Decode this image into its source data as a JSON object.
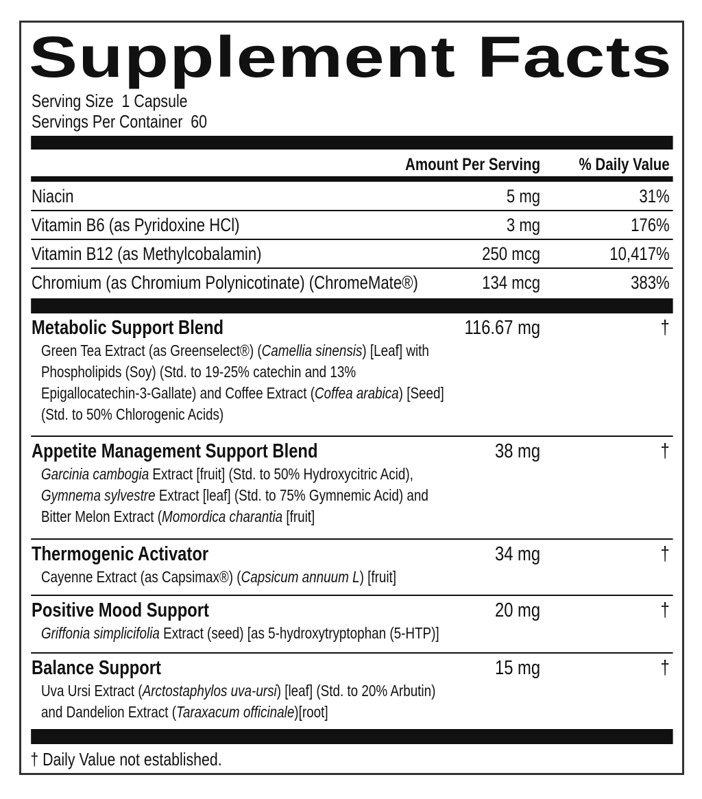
{
  "header": {
    "title": "Supplement Facts",
    "serving_size": "Serving Size  1 Capsule",
    "servings_per_container": "Servings Per Container  60"
  },
  "table": {
    "columns": [
      "Amount Per Serving",
      "% Daily Value"
    ],
    "rows": [
      [
        "Niacin",
        "5 mg",
        "31%"
      ],
      [
        "Vitamin B6 (as Pyridoxine HCl)",
        "3 mg",
        "176%"
      ],
      [
        "Vitamin B12 (as Methylcobalamin)",
        "250 mcg",
        "10,417%"
      ],
      [
        "Chromium (as Chromium Polynicotinate) (ChromeMate®)",
        "134 mcg",
        "383%"
      ]
    ],
    "blends": [
      {
        "name": "Metabolic Support Blend",
        "amount": "116.67 mg",
        "daily_value": "†",
        "description": [
          [
            "Green Tea Extract (as Greenselect®) (",
            {
              "text": "Camellia sinensis",
              "style": "italic"
            },
            ") [Leaf] with"
          ],
          [
            "Phospholipids (Soy) (Std. to 19-25% catechin and 13%"
          ],
          [
            "Epigallocatechin-3-Gallate) and Coffee Extract (",
            {
              "text": "Coffea arabica",
              "style": "italic"
            },
            ") [Seed]"
          ],
          [
            "(Std. to 50% Chlorogenic Acids)"
          ]
        ]
      },
      {
        "name": "Appetite Management Support Blend",
        "amount": "38 mg",
        "daily_value": "†",
        "description": [
          [
            {
              "text": "Garcinia cambogia",
              "style": "italic"
            },
            " Extract [fruit] (Std. to 50% Hydroxycitric Acid),"
          ],
          [
            {
              "text": "Gymnema sylvestre",
              "style": "italic"
            },
            " Extract [leaf] (Std. to 75% Gymnemic Acid) and"
          ],
          [
            "Bitter Melon Extract (",
            {
              "text": "Momordica charantia",
              "style": "italic"
            },
            " [fruit]"
          ]
        ]
      },
      {
        "name": "Thermogenic Activator",
        "amount": "34 mg",
        "daily_value": "†",
        "description": [
          [
            "Cayenne Extract (as Capsimax®) (",
            {
              "text": "Capsicum annuum L",
              "style": "italic"
            },
            ") [fruit]"
          ]
        ]
      },
      {
        "name": "Positive Mood Support",
        "amount": "20 mg",
        "daily_value": "†",
        "description": [
          [
            {
              "text": "Griffonia simplicifolia",
              "style": "italic"
            },
            " Extract (seed) [as 5-hydroxytryptophan (5-HTP)]"
          ]
        ]
      },
      {
        "name": "Balance Support",
        "amount": "15 mg",
        "daily_value": "†",
        "description": [
          [
            "Uva Ursi Extract (",
            {
              "text": "Arctostaphylos uva-ursi",
              "style": "italic"
            },
            ") [leaf] (Std. to 20% Arbutin)"
          ],
          [
            "and Dandelion Extract (",
            {
              "text": "Taraxacum officinale",
              "style": "italic"
            },
            ")[root]"
          ]
        ]
      }
    ]
  },
  "footnote": "† Daily Value not established."
}
